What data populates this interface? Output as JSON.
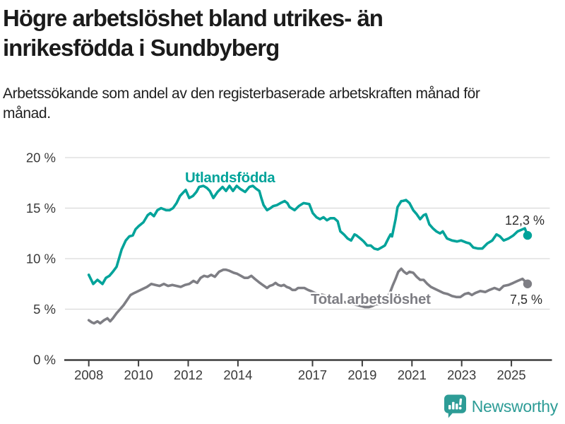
{
  "header": {
    "title": "Högre arbetslöshet bland utrikes- än inrikesfödda i Sundbyberg",
    "subtitle": "Arbetssökande som andel av den registerbaserade arbetskraften månad för månad."
  },
  "branding": {
    "logo_text": "Newsworthy",
    "logo_icon": "bar-chart-speech-bubble-icon",
    "logo_color": "#2d9c96"
  },
  "colors": {
    "foreign_born_line": "#00a39a",
    "total_line": "#7e7e84",
    "gridline": "#d9d9d9",
    "axis": "#3d3d3d",
    "text": "#3a3a3a"
  },
  "chart_data": {
    "type": "line",
    "title": "Högre arbetslöshet bland utrikes- än inrikesfödda i Sundbyberg",
    "subtitle": "Arbetssökande som andel av den registerbaserade arbetskraften månad för månad.",
    "grid": "horizontal",
    "legend_position": "inline-labels",
    "y_axis": {
      "range": [
        0,
        20
      ],
      "ticks": [
        0,
        5,
        10,
        15,
        20
      ],
      "tick_labels": [
        "0 %",
        "5 %",
        "10 %",
        "15 %",
        "20 %"
      ]
    },
    "x_axis": {
      "range_years": [
        2008,
        2025.65
      ],
      "ticks": [
        2008,
        2010,
        2012,
        2014,
        2017,
        2019,
        2021,
        2023,
        2025
      ],
      "tick_labels": [
        "2008",
        "2010",
        "2012",
        "2014",
        "2017",
        "2019",
        "2021",
        "2023",
        "2025"
      ]
    },
    "series": [
      {
        "name": "Utlandsfödda",
        "color": "#00a39a",
        "end_label": "12,3 %",
        "end_value": 12.3,
        "points": [
          [
            2008.0,
            8.4
          ],
          [
            2008.18,
            7.5
          ],
          [
            2008.35,
            7.9
          ],
          [
            2008.55,
            7.5
          ],
          [
            2008.69,
            8.1
          ],
          [
            2008.83,
            8.3
          ],
          [
            2008.97,
            8.7
          ],
          [
            2009.12,
            9.2
          ],
          [
            2009.32,
            10.9
          ],
          [
            2009.49,
            11.8
          ],
          [
            2009.63,
            12.2
          ],
          [
            2009.77,
            12.3
          ],
          [
            2009.88,
            12.9
          ],
          [
            2010.0,
            13.2
          ],
          [
            2010.2,
            13.6
          ],
          [
            2010.37,
            14.3
          ],
          [
            2010.48,
            14.5
          ],
          [
            2010.62,
            14.2
          ],
          [
            2010.76,
            14.8
          ],
          [
            2010.91,
            15.0
          ],
          [
            2011.11,
            14.8
          ],
          [
            2011.25,
            14.8
          ],
          [
            2011.39,
            15.0
          ],
          [
            2011.53,
            15.5
          ],
          [
            2011.67,
            16.2
          ],
          [
            2011.82,
            16.6
          ],
          [
            2011.9,
            16.8
          ],
          [
            2012.04,
            16.0
          ],
          [
            2012.19,
            16.2
          ],
          [
            2012.33,
            16.6
          ],
          [
            2012.44,
            17.1
          ],
          [
            2012.61,
            17.2
          ],
          [
            2012.75,
            17.0
          ],
          [
            2012.87,
            16.7
          ],
          [
            2013.01,
            16.0
          ],
          [
            2013.18,
            16.6
          ],
          [
            2013.38,
            17.1
          ],
          [
            2013.52,
            16.7
          ],
          [
            2013.66,
            17.2
          ],
          [
            2013.8,
            16.7
          ],
          [
            2013.95,
            17.2
          ],
          [
            2014.09,
            16.9
          ],
          [
            2014.29,
            16.6
          ],
          [
            2014.46,
            17.1
          ],
          [
            2014.6,
            17.2
          ],
          [
            2014.74,
            16.9
          ],
          [
            2014.86,
            16.7
          ],
          [
            2014.94,
            16.0
          ],
          [
            2015.03,
            15.3
          ],
          [
            2015.17,
            14.8
          ],
          [
            2015.31,
            15.0
          ],
          [
            2015.42,
            15.2
          ],
          [
            2015.57,
            15.3
          ],
          [
            2015.71,
            15.5
          ],
          [
            2015.88,
            15.7
          ],
          [
            2015.99,
            15.5
          ],
          [
            2016.08,
            15.1
          ],
          [
            2016.28,
            14.8
          ],
          [
            2016.45,
            15.2
          ],
          [
            2016.64,
            15.5
          ],
          [
            2016.87,
            15.4
          ],
          [
            2017.01,
            14.5
          ],
          [
            2017.16,
            14.1
          ],
          [
            2017.3,
            13.9
          ],
          [
            2017.44,
            14.1
          ],
          [
            2017.58,
            13.8
          ],
          [
            2017.72,
            14.0
          ],
          [
            2017.87,
            14.0
          ],
          [
            2018.01,
            13.7
          ],
          [
            2018.12,
            12.7
          ],
          [
            2018.26,
            12.4
          ],
          [
            2018.41,
            12.0
          ],
          [
            2018.55,
            11.8
          ],
          [
            2018.69,
            12.4
          ],
          [
            2018.77,
            12.3
          ],
          [
            2018.92,
            12.0
          ],
          [
            2019.06,
            11.7
          ],
          [
            2019.2,
            11.3
          ],
          [
            2019.34,
            11.3
          ],
          [
            2019.48,
            11.0
          ],
          [
            2019.63,
            10.9
          ],
          [
            2019.77,
            11.1
          ],
          [
            2019.91,
            11.3
          ],
          [
            2020.05,
            12.0
          ],
          [
            2020.14,
            12.4
          ],
          [
            2020.2,
            12.2
          ],
          [
            2020.34,
            13.9
          ],
          [
            2020.42,
            15.1
          ],
          [
            2020.57,
            15.7
          ],
          [
            2020.62,
            15.7
          ],
          [
            2020.76,
            15.8
          ],
          [
            2020.9,
            15.5
          ],
          [
            2021.05,
            14.8
          ],
          [
            2021.19,
            14.4
          ],
          [
            2021.33,
            13.9
          ],
          [
            2021.47,
            14.3
          ],
          [
            2021.56,
            14.4
          ],
          [
            2021.7,
            13.4
          ],
          [
            2021.84,
            13.0
          ],
          [
            2021.98,
            12.7
          ],
          [
            2022.13,
            12.5
          ],
          [
            2022.24,
            12.7
          ],
          [
            2022.41,
            12.0
          ],
          [
            2022.61,
            11.8
          ],
          [
            2022.81,
            11.7
          ],
          [
            2022.98,
            11.8
          ],
          [
            2023.18,
            11.6
          ],
          [
            2023.32,
            11.5
          ],
          [
            2023.47,
            11.1
          ],
          [
            2023.66,
            11.0
          ],
          [
            2023.83,
            11.0
          ],
          [
            2024.03,
            11.5
          ],
          [
            2024.23,
            11.8
          ],
          [
            2024.4,
            12.4
          ],
          [
            2024.54,
            12.2
          ],
          [
            2024.69,
            11.8
          ],
          [
            2024.89,
            12.0
          ],
          [
            2025.08,
            12.3
          ],
          [
            2025.25,
            12.7
          ],
          [
            2025.45,
            12.9
          ],
          [
            2025.54,
            13.0
          ],
          [
            2025.65,
            12.3
          ]
        ]
      },
      {
        "name": "Total arbetslöshet",
        "color": "#7e7e84",
        "end_label": "7,5 %",
        "end_value": 7.5,
        "points": [
          [
            2008.0,
            3.9
          ],
          [
            2008.12,
            3.7
          ],
          [
            2008.21,
            3.6
          ],
          [
            2008.35,
            3.8
          ],
          [
            2008.46,
            3.6
          ],
          [
            2008.61,
            3.9
          ],
          [
            2008.75,
            4.1
          ],
          [
            2008.86,
            3.8
          ],
          [
            2008.97,
            4.1
          ],
          [
            2009.12,
            4.6
          ],
          [
            2009.26,
            5.0
          ],
          [
            2009.4,
            5.4
          ],
          [
            2009.54,
            5.9
          ],
          [
            2009.68,
            6.4
          ],
          [
            2009.83,
            6.6
          ],
          [
            2010.0,
            6.8
          ],
          [
            2010.17,
            7.0
          ],
          [
            2010.34,
            7.2
          ],
          [
            2010.51,
            7.5
          ],
          [
            2010.68,
            7.4
          ],
          [
            2010.85,
            7.3
          ],
          [
            2011.02,
            7.5
          ],
          [
            2011.19,
            7.3
          ],
          [
            2011.36,
            7.4
          ],
          [
            2011.53,
            7.3
          ],
          [
            2011.7,
            7.2
          ],
          [
            2011.87,
            7.4
          ],
          [
            2012.04,
            7.5
          ],
          [
            2012.21,
            7.8
          ],
          [
            2012.36,
            7.6
          ],
          [
            2012.5,
            8.1
          ],
          [
            2012.64,
            8.3
          ],
          [
            2012.78,
            8.2
          ],
          [
            2012.92,
            8.4
          ],
          [
            2013.07,
            8.2
          ],
          [
            2013.24,
            8.7
          ],
          [
            2013.41,
            8.9
          ],
          [
            2013.52,
            8.9
          ],
          [
            2013.66,
            8.8
          ],
          [
            2013.83,
            8.6
          ],
          [
            2013.97,
            8.5
          ],
          [
            2014.12,
            8.3
          ],
          [
            2014.26,
            8.1
          ],
          [
            2014.4,
            8.1
          ],
          [
            2014.54,
            8.3
          ],
          [
            2014.68,
            8.0
          ],
          [
            2014.83,
            7.7
          ],
          [
            2014.94,
            7.5
          ],
          [
            2015.05,
            7.3
          ],
          [
            2015.17,
            7.1
          ],
          [
            2015.28,
            7.3
          ],
          [
            2015.4,
            7.4
          ],
          [
            2015.51,
            7.6
          ],
          [
            2015.62,
            7.4
          ],
          [
            2015.74,
            7.3
          ],
          [
            2015.85,
            7.4
          ],
          [
            2015.96,
            7.2
          ],
          [
            2016.08,
            7.1
          ],
          [
            2016.19,
            6.9
          ],
          [
            2016.31,
            6.9
          ],
          [
            2016.42,
            7.1
          ],
          [
            2016.56,
            7.1
          ],
          [
            2016.67,
            7.1
          ],
          [
            2016.82,
            6.9
          ],
          [
            2016.93,
            6.8
          ],
          [
            2017.1,
            6.6
          ],
          [
            2017.27,
            6.5
          ],
          [
            2017.44,
            6.4
          ],
          [
            2017.61,
            6.2
          ],
          [
            2017.78,
            6.0
          ],
          [
            2017.95,
            5.9
          ],
          [
            2018.12,
            5.8
          ],
          [
            2018.29,
            5.7
          ],
          [
            2018.46,
            5.6
          ],
          [
            2018.63,
            5.5
          ],
          [
            2018.8,
            5.4
          ],
          [
            2018.97,
            5.3
          ],
          [
            2019.11,
            5.2
          ],
          [
            2019.26,
            5.2
          ],
          [
            2019.4,
            5.3
          ],
          [
            2019.54,
            5.5
          ],
          [
            2019.68,
            5.5
          ],
          [
            2019.82,
            5.7
          ],
          [
            2019.97,
            5.9
          ],
          [
            2020.11,
            6.6
          ],
          [
            2020.22,
            7.3
          ],
          [
            2020.34,
            8.0
          ],
          [
            2020.45,
            8.7
          ],
          [
            2020.57,
            9.0
          ],
          [
            2020.68,
            8.7
          ],
          [
            2020.79,
            8.5
          ],
          [
            2020.9,
            8.7
          ],
          [
            2021.05,
            8.6
          ],
          [
            2021.19,
            8.2
          ],
          [
            2021.33,
            7.9
          ],
          [
            2021.47,
            7.9
          ],
          [
            2021.62,
            7.5
          ],
          [
            2021.76,
            7.2
          ],
          [
            2021.93,
            7.0
          ],
          [
            2022.1,
            6.8
          ],
          [
            2022.27,
            6.6
          ],
          [
            2022.44,
            6.5
          ],
          [
            2022.61,
            6.3
          ],
          [
            2022.78,
            6.2
          ],
          [
            2022.95,
            6.2
          ],
          [
            2023.12,
            6.5
          ],
          [
            2023.27,
            6.6
          ],
          [
            2023.41,
            6.4
          ],
          [
            2023.55,
            6.6
          ],
          [
            2023.75,
            6.8
          ],
          [
            2023.95,
            6.7
          ],
          [
            2024.12,
            6.9
          ],
          [
            2024.32,
            7.1
          ],
          [
            2024.52,
            6.9
          ],
          [
            2024.69,
            7.3
          ],
          [
            2024.89,
            7.4
          ],
          [
            2025.08,
            7.6
          ],
          [
            2025.25,
            7.8
          ],
          [
            2025.45,
            8.0
          ],
          [
            2025.65,
            7.5
          ]
        ]
      }
    ]
  }
}
